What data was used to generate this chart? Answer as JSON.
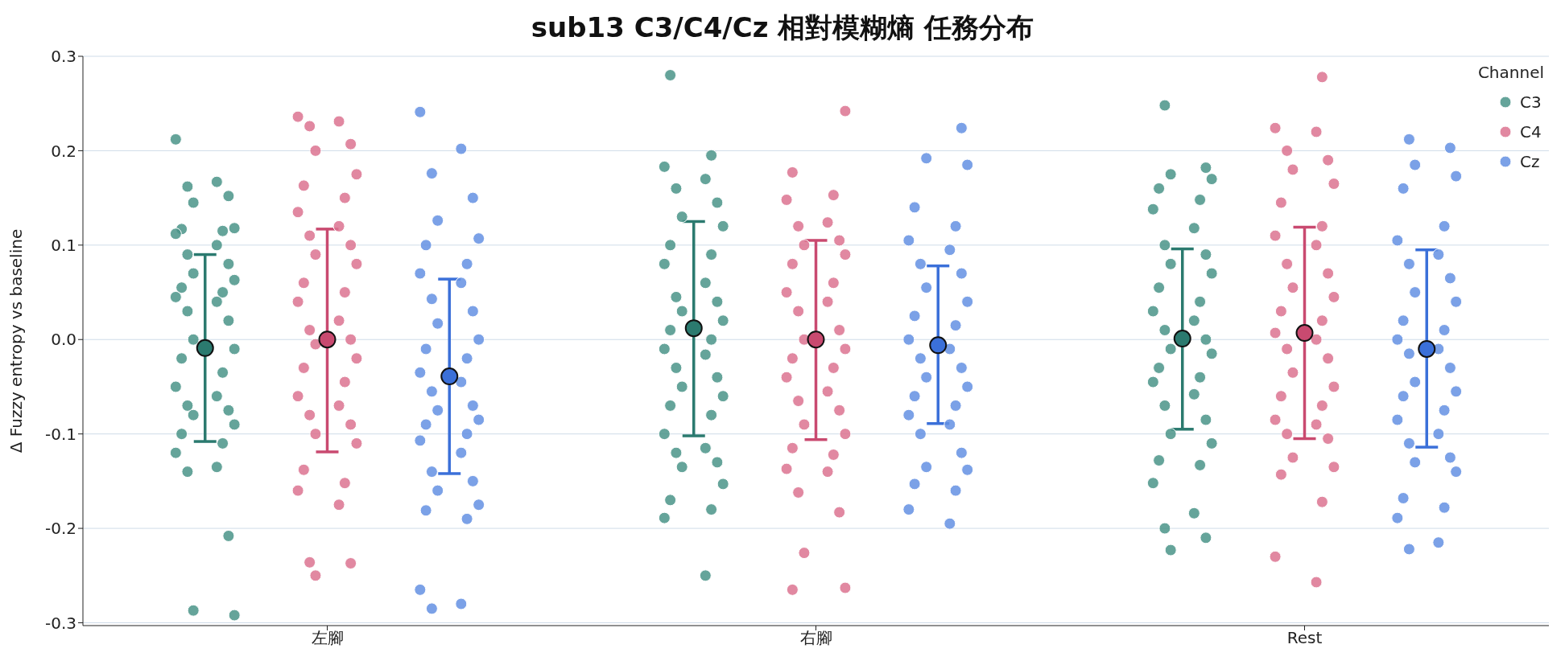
{
  "chart_data": {
    "type": "scatter",
    "title": "sub13 C3/C4/Cz 相對模糊熵 任務分布",
    "ylabel": "Δ Fuzzy entropy vs baseline",
    "legend_title": "Channel",
    "legend": "top right",
    "grid": "y",
    "marker": "circle",
    "categories": [
      "左腳",
      "右腳",
      "Rest"
    ],
    "ylim": [
      -0.303,
      0.3
    ],
    "yticks": [
      -0.3,
      -0.2,
      -0.1,
      {
        "value": 0,
        "label": "0.0"
      },
      0.1,
      0.2,
      0.3
    ],
    "series": [
      {
        "name": "C3",
        "color": "#4a9488",
        "x": [
          "左腳",
          "左腳",
          "左腳",
          "左腳",
          "左腳",
          "左腳",
          "左腳",
          "左腳",
          "左腳",
          "左腳",
          "左腳",
          "左腳",
          "左腳",
          "左腳",
          "左腳",
          "左腳",
          "左腳",
          "左腳",
          "左腳",
          "左腳",
          "左腳",
          "左腳",
          "左腳",
          "左腳",
          "左腳",
          "左腳",
          "左腳",
          "左腳",
          "左腳",
          "左腳",
          "左腳",
          "左腳",
          "左腳",
          "左腳",
          "左腳",
          "左腳",
          "左腳",
          "左腳",
          "右腳",
          "右腳",
          "右腳",
          "右腳",
          "右腳",
          "右腳",
          "右腳",
          "右腳",
          "右腳",
          "右腳",
          "右腳",
          "右腳",
          "右腳",
          "右腳",
          "右腳",
          "右腳",
          "右腳",
          "右腳",
          "右腳",
          "右腳",
          "右腳",
          "右腳",
          "右腳",
          "右腳",
          "右腳",
          "右腳",
          "右腳",
          "右腳",
          "右腳",
          "右腳",
          "右腳",
          "右腳",
          "右腳",
          "右腳",
          "右腳",
          "右腳",
          "Rest",
          "Rest",
          "Rest",
          "Rest",
          "Rest",
          "Rest",
          "Rest",
          "Rest",
          "Rest",
          "Rest",
          "Rest",
          "Rest",
          "Rest",
          "Rest",
          "Rest",
          "Rest",
          "Rest",
          "Rest",
          "Rest",
          "Rest",
          "Rest",
          "Rest",
          "Rest",
          "Rest",
          "Rest",
          "Rest",
          "Rest",
          "Rest",
          "Rest",
          "Rest",
          "Rest",
          "Rest",
          "Rest",
          "Rest",
          "Rest"
        ],
        "values": [
          0.212,
          0.167,
          0.162,
          0.152,
          0.145,
          0.118,
          0.117,
          0.115,
          0.112,
          0.1,
          0.09,
          0.08,
          0.07,
          0.063,
          0.055,
          0.05,
          0.045,
          0.04,
          0.03,
          0.02,
          0.0,
          -0.01,
          -0.02,
          -0.035,
          -0.05,
          -0.06,
          -0.07,
          -0.075,
          -0.08,
          -0.09,
          -0.1,
          -0.11,
          -0.12,
          -0.135,
          -0.14,
          -0.208,
          -0.287,
          -0.292,
          0.28,
          0.195,
          0.183,
          0.17,
          0.16,
          0.145,
          0.13,
          0.12,
          0.1,
          0.09,
          0.08,
          0.06,
          0.045,
          0.04,
          0.03,
          0.02,
          0.01,
          0.0,
          -0.01,
          -0.016,
          -0.03,
          -0.04,
          -0.05,
          -0.06,
          -0.07,
          -0.08,
          -0.1,
          -0.115,
          -0.12,
          -0.13,
          -0.135,
          -0.153,
          -0.17,
          -0.18,
          -0.189,
          -0.25,
          0.248,
          0.182,
          0.175,
          0.17,
          0.16,
          0.148,
          0.138,
          0.118,
          0.1,
          0.09,
          0.08,
          0.07,
          0.055,
          0.04,
          0.03,
          0.02,
          0.01,
          0.0,
          -0.01,
          -0.015,
          -0.03,
          -0.04,
          -0.045,
          -0.058,
          -0.07,
          -0.085,
          -0.1,
          -0.11,
          -0.128,
          -0.133,
          -0.152,
          -0.184,
          -0.2,
          -0.21,
          -0.223
        ]
      },
      {
        "name": "C4",
        "color": "#dc7390",
        "x": [
          "左腳",
          "左腳",
          "左腳",
          "左腳",
          "左腳",
          "左腳",
          "左腳",
          "左腳",
          "左腳",
          "左腳",
          "左腳",
          "左腳",
          "左腳",
          "左腳",
          "左腳",
          "左腳",
          "左腳",
          "左腳",
          "左腳",
          "左腳",
          "左腳",
          "左腳",
          "左腳",
          "左腳",
          "左腳",
          "左腳",
          "左腳",
          "左腳",
          "左腳",
          "左腳",
          "左腳",
          "左腳",
          "左腳",
          "左腳",
          "左腳",
          "左腳",
          "左腳",
          "右腳",
          "右腳",
          "右腳",
          "右腳",
          "右腳",
          "右腳",
          "右腳",
          "右腳",
          "右腳",
          "右腳",
          "右腳",
          "右腳",
          "右腳",
          "右腳",
          "右腳",
          "右腳",
          "右腳",
          "右腳",
          "右腳",
          "右腳",
          "右腳",
          "右腳",
          "右腳",
          "右腳",
          "右腳",
          "右腳",
          "右腳",
          "右腳",
          "右腳",
          "右腳",
          "右腳",
          "右腳",
          "右腳",
          "右腳",
          "Rest",
          "Rest",
          "Rest",
          "Rest",
          "Rest",
          "Rest",
          "Rest",
          "Rest",
          "Rest",
          "Rest",
          "Rest",
          "Rest",
          "Rest",
          "Rest",
          "Rest",
          "Rest",
          "Rest",
          "Rest",
          "Rest",
          "Rest",
          "Rest",
          "Rest",
          "Rest",
          "Rest",
          "Rest",
          "Rest",
          "Rest",
          "Rest",
          "Rest",
          "Rest",
          "Rest",
          "Rest",
          "Rest",
          "Rest",
          "Rest"
        ],
        "values": [
          0.236,
          0.231,
          0.226,
          0.207,
          0.2,
          0.175,
          0.163,
          0.15,
          0.135,
          0.12,
          0.11,
          0.1,
          0.09,
          0.08,
          0.06,
          0.05,
          0.04,
          0.02,
          0.01,
          0.0,
          -0.005,
          -0.02,
          -0.03,
          -0.045,
          -0.06,
          -0.07,
          -0.08,
          -0.09,
          -0.1,
          -0.11,
          -0.138,
          -0.152,
          -0.16,
          -0.175,
          -0.236,
          -0.237,
          -0.25,
          0.242,
          0.177,
          0.153,
          0.148,
          0.124,
          0.12,
          0.105,
          0.1,
          0.09,
          0.08,
          0.06,
          0.05,
          0.04,
          0.03,
          0.01,
          0.0,
          -0.01,
          -0.02,
          -0.03,
          -0.04,
          -0.055,
          -0.065,
          -0.075,
          -0.09,
          -0.1,
          -0.115,
          -0.122,
          -0.137,
          -0.14,
          -0.162,
          -0.183,
          -0.226,
          -0.263,
          -0.265,
          0.278,
          0.224,
          0.22,
          0.2,
          0.19,
          0.18,
          0.165,
          0.145,
          0.12,
          0.11,
          0.1,
          0.08,
          0.07,
          0.055,
          0.045,
          0.03,
          0.02,
          0.007,
          0.0,
          -0.01,
          -0.02,
          -0.035,
          -0.05,
          -0.06,
          -0.07,
          -0.085,
          -0.09,
          -0.1,
          -0.105,
          -0.125,
          -0.135,
          -0.143,
          -0.172,
          -0.23,
          -0.257
        ]
      },
      {
        "name": "Cz",
        "color": "#6491e3",
        "x": [
          "左腳",
          "左腳",
          "左腳",
          "左腳",
          "左腳",
          "左腳",
          "左腳",
          "左腳",
          "左腳",
          "左腳",
          "左腳",
          "左腳",
          "左腳",
          "左腳",
          "左腳",
          "左腳",
          "左腳",
          "左腳",
          "左腳",
          "左腳",
          "左腳",
          "左腳",
          "左腳",
          "左腳",
          "左腳",
          "左腳",
          "左腳",
          "左腳",
          "左腳",
          "左腳",
          "左腳",
          "左腳",
          "左腳",
          "左腳",
          "左腳",
          "右腳",
          "右腳",
          "右腳",
          "右腳",
          "右腳",
          "右腳",
          "右腳",
          "右腳",
          "右腳",
          "右腳",
          "右腳",
          "右腳",
          "右腳",
          "右腳",
          "右腳",
          "右腳",
          "右腳",
          "右腳",
          "右腳",
          "右腳",
          "右腳",
          "右腳",
          "右腳",
          "右腳",
          "右腳",
          "右腳",
          "右腳",
          "右腳",
          "右腳",
          "右腳",
          "右腳",
          "Rest",
          "Rest",
          "Rest",
          "Rest",
          "Rest",
          "Rest",
          "Rest",
          "Rest",
          "Rest",
          "Rest",
          "Rest",
          "Rest",
          "Rest",
          "Rest",
          "Rest",
          "Rest",
          "Rest",
          "Rest",
          "Rest",
          "Rest",
          "Rest",
          "Rest",
          "Rest",
          "Rest",
          "Rest",
          "Rest",
          "Rest",
          "Rest",
          "Rest",
          "Rest",
          "Rest",
          "Rest",
          "Rest"
        ],
        "values": [
          0.241,
          0.202,
          0.176,
          0.15,
          0.126,
          0.107,
          0.1,
          0.08,
          0.07,
          0.06,
          0.043,
          0.03,
          0.017,
          0.0,
          -0.01,
          -0.02,
          -0.035,
          -0.045,
          -0.055,
          -0.07,
          -0.075,
          -0.085,
          -0.09,
          -0.1,
          -0.107,
          -0.12,
          -0.14,
          -0.15,
          -0.16,
          -0.175,
          -0.181,
          -0.19,
          -0.265,
          -0.28,
          -0.285,
          0.224,
          0.192,
          0.185,
          0.14,
          0.12,
          0.105,
          0.095,
          0.08,
          0.07,
          0.055,
          0.04,
          0.025,
          0.015,
          0.0,
          -0.01,
          -0.02,
          -0.03,
          -0.04,
          -0.05,
          -0.06,
          -0.07,
          -0.08,
          -0.09,
          -0.1,
          -0.12,
          -0.135,
          -0.138,
          -0.153,
          -0.16,
          -0.18,
          -0.195,
          0.212,
          0.203,
          0.185,
          0.173,
          0.16,
          0.12,
          0.105,
          0.09,
          0.08,
          0.065,
          0.05,
          0.04,
          0.02,
          0.01,
          0.0,
          -0.01,
          -0.015,
          -0.03,
          -0.045,
          -0.055,
          -0.06,
          -0.075,
          -0.085,
          -0.1,
          -0.11,
          -0.125,
          -0.13,
          -0.14,
          -0.168,
          -0.178,
          -0.189,
          -0.215,
          -0.222
        ]
      },
      {
        "color": "#2b7a6f",
        "x": [
          "左腳",
          "右腳",
          "Rest"
        ],
        "values": [
          -0.009,
          0.012,
          0.001
        ],
        "errors": [
          [
            -0.108,
            0.09
          ],
          [
            -0.102,
            0.125
          ],
          [
            -0.095,
            0.096
          ]
        ]
      },
      {
        "color": "#c94a70",
        "x": [
          "左腳",
          "右腳",
          "Rest"
        ],
        "values": [
          0.0,
          0.0,
          0.007
        ],
        "errors": [
          [
            -0.119,
            0.117
          ],
          [
            -0.106,
            0.105
          ],
          [
            -0.105,
            0.119
          ]
        ]
      },
      {
        "color": "#3b70d9",
        "x": [
          "左腳",
          "右腳",
          "Rest"
        ],
        "values": [
          -0.039,
          -0.006,
          -0.01
        ],
        "errors": [
          [
            -0.142,
            0.064
          ],
          [
            -0.089,
            0.078
          ],
          [
            -0.114,
            0.095
          ]
        ]
      }
    ]
  }
}
